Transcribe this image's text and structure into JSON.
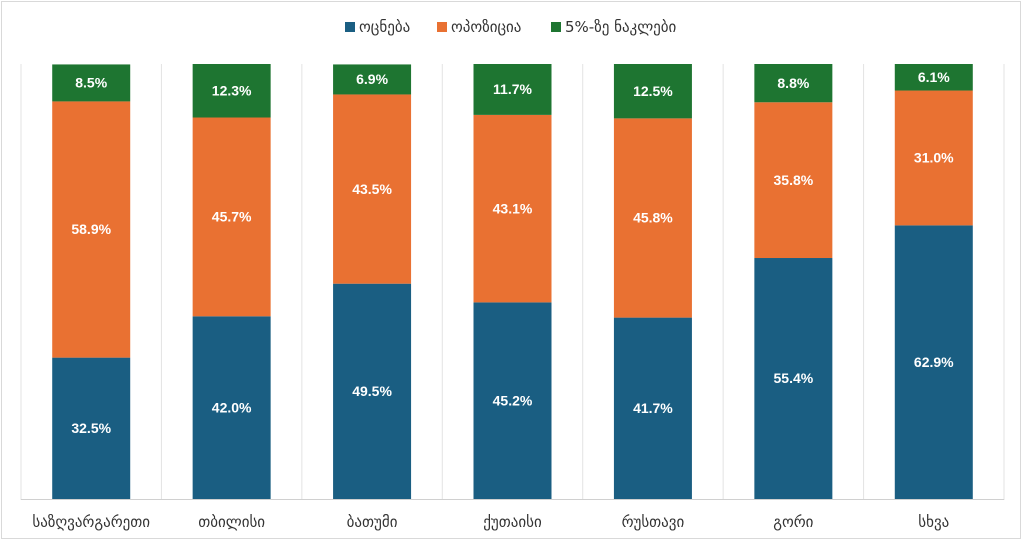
{
  "chart_data": {
    "type": "bar",
    "stacked": true,
    "title": "",
    "xlabel": "",
    "ylabel": "",
    "ylim": [
      0,
      100
    ],
    "legend_position": "top",
    "categories": [
      "საზღვარგარეთი",
      "თბილისი",
      "ბათუმი",
      "ქუთაისი",
      "რუსთავი",
      "გორი",
      "სხვა"
    ],
    "series": [
      {
        "name": "ოცნება",
        "color": "#1a5e82",
        "values": [
          32.5,
          42.0,
          49.5,
          45.2,
          41.7,
          55.4,
          62.9
        ]
      },
      {
        "name": "ოპოზიცია",
        "color": "#e97132",
        "values": [
          58.9,
          45.7,
          43.5,
          43.1,
          45.8,
          35.8,
          31.0
        ]
      },
      {
        "name": "5%-ზე ნაკლები",
        "color": "#1e7531",
        "values": [
          8.5,
          12.3,
          6.9,
          11.7,
          12.5,
          8.8,
          6.1
        ]
      }
    ]
  }
}
